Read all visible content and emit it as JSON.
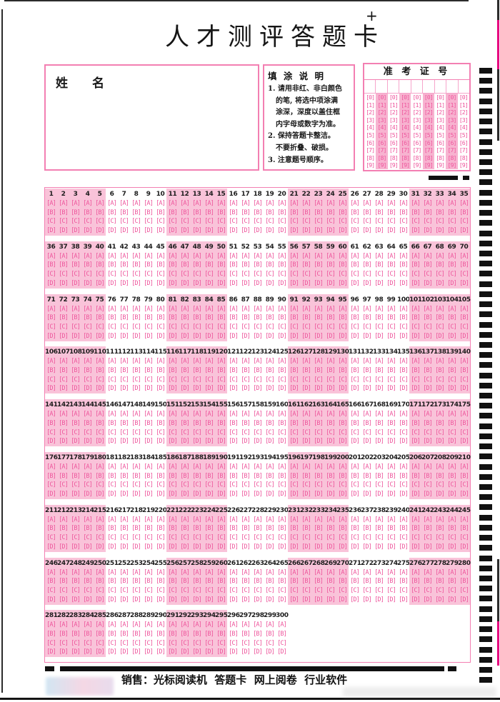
{
  "page": {
    "title": "人才测评答题卡",
    "registration_mark": "+"
  },
  "name_box": {
    "label": "姓　　名"
  },
  "instructions": {
    "title": "填 涂 说 明",
    "lines": [
      {
        "text": "1. 请用非红、非白颜色",
        "indent": false
      },
      {
        "text": "的笔, 将选中项涂满",
        "indent": true
      },
      {
        "text": "涂深，深度以盖住框",
        "indent": true
      },
      {
        "text": "内字母或数字为准。",
        "indent": true
      },
      {
        "text": "2. 保持答题卡整洁。",
        "indent": false
      },
      {
        "text": "不要折叠、破损。",
        "indent": true
      },
      {
        "text": "3. 注意题号顺序。",
        "indent": false
      }
    ]
  },
  "admission": {
    "title": "准 考 证 号",
    "num_columns": 9,
    "digits": [
      "0",
      "1",
      "2",
      "3",
      "4",
      "5",
      "6",
      "7",
      "8",
      "9"
    ],
    "shaded_columns": [
      1,
      3,
      5,
      7
    ]
  },
  "answer_grid": {
    "first_question": 1,
    "last_question": 300,
    "questions_per_row": 35,
    "group_size": 5,
    "options": [
      "A",
      "B",
      "C",
      "D"
    ]
  },
  "footer": {
    "sales_text": "销售：光标阅读机  答题卡  网上阅卷  行业软件"
  },
  "colors": {
    "pink_border": "#f37fb2",
    "pink_block_fill": "#f9c3d9",
    "pink_stripe_fill": "#f7b3d0",
    "bubble_text": "#ee559c",
    "mark_black": "#111111",
    "edge_magenta": "#e6007e"
  }
}
